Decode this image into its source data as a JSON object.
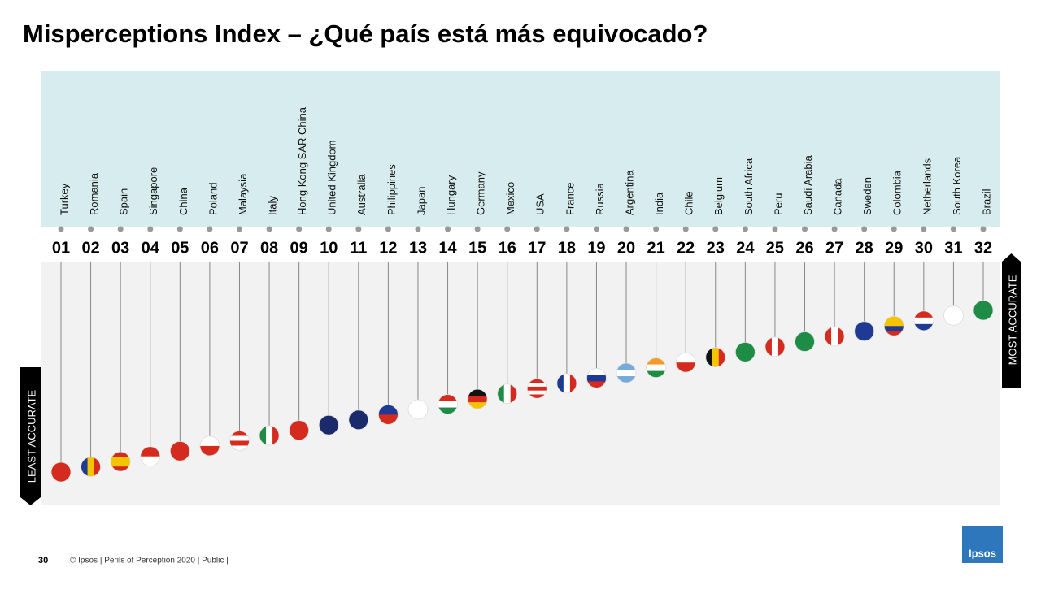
{
  "header": {
    "title": "Misperceptions Index – ¿Qué país está más equivocado?"
  },
  "countries": [
    {
      "rank": "01",
      "name": "Turkey"
    },
    {
      "rank": "02",
      "name": "Romania"
    },
    {
      "rank": "03",
      "name": "Spain"
    },
    {
      "rank": "04",
      "name": "Singapore"
    },
    {
      "rank": "05",
      "name": "China"
    },
    {
      "rank": "06",
      "name": "Poland"
    },
    {
      "rank": "07",
      "name": "Malaysia"
    },
    {
      "rank": "08",
      "name": "Italy"
    },
    {
      "rank": "09",
      "name": "Hong Kong SAR China"
    },
    {
      "rank": "10",
      "name": "United Kingdom"
    },
    {
      "rank": "11",
      "name": "Australia"
    },
    {
      "rank": "12",
      "name": "Philippines"
    },
    {
      "rank": "13",
      "name": "Japan"
    },
    {
      "rank": "14",
      "name": "Hungary"
    },
    {
      "rank": "15",
      "name": "Germany"
    },
    {
      "rank": "16",
      "name": "Mexico"
    },
    {
      "rank": "17",
      "name": "USA"
    },
    {
      "rank": "18",
      "name": "France"
    },
    {
      "rank": "19",
      "name": "Russia"
    },
    {
      "rank": "20",
      "name": "Argentina"
    },
    {
      "rank": "21",
      "name": "India"
    },
    {
      "rank": "22",
      "name": "Chile"
    },
    {
      "rank": "23",
      "name": "Belgium"
    },
    {
      "rank": "24",
      "name": "South Africa"
    },
    {
      "rank": "25",
      "name": "Peru"
    },
    {
      "rank": "26",
      "name": "Saudi Arabia"
    },
    {
      "rank": "27",
      "name": "Canada"
    },
    {
      "rank": "28",
      "name": "Sweden"
    },
    {
      "rank": "29",
      "name": "Colombia"
    },
    {
      "rank": "30",
      "name": "Netherlands"
    },
    {
      "rank": "31",
      "name": "South Korea"
    },
    {
      "rank": "32",
      "name": "Brazil"
    }
  ],
  "labels": {
    "least": "LEAST ACCURATE",
    "most": "MOST ACCURATE"
  },
  "footer": {
    "page": "30",
    "text": "© Ipsos | Perils of Perception 2020 | Public |",
    "logo": "Ipsos"
  }
}
